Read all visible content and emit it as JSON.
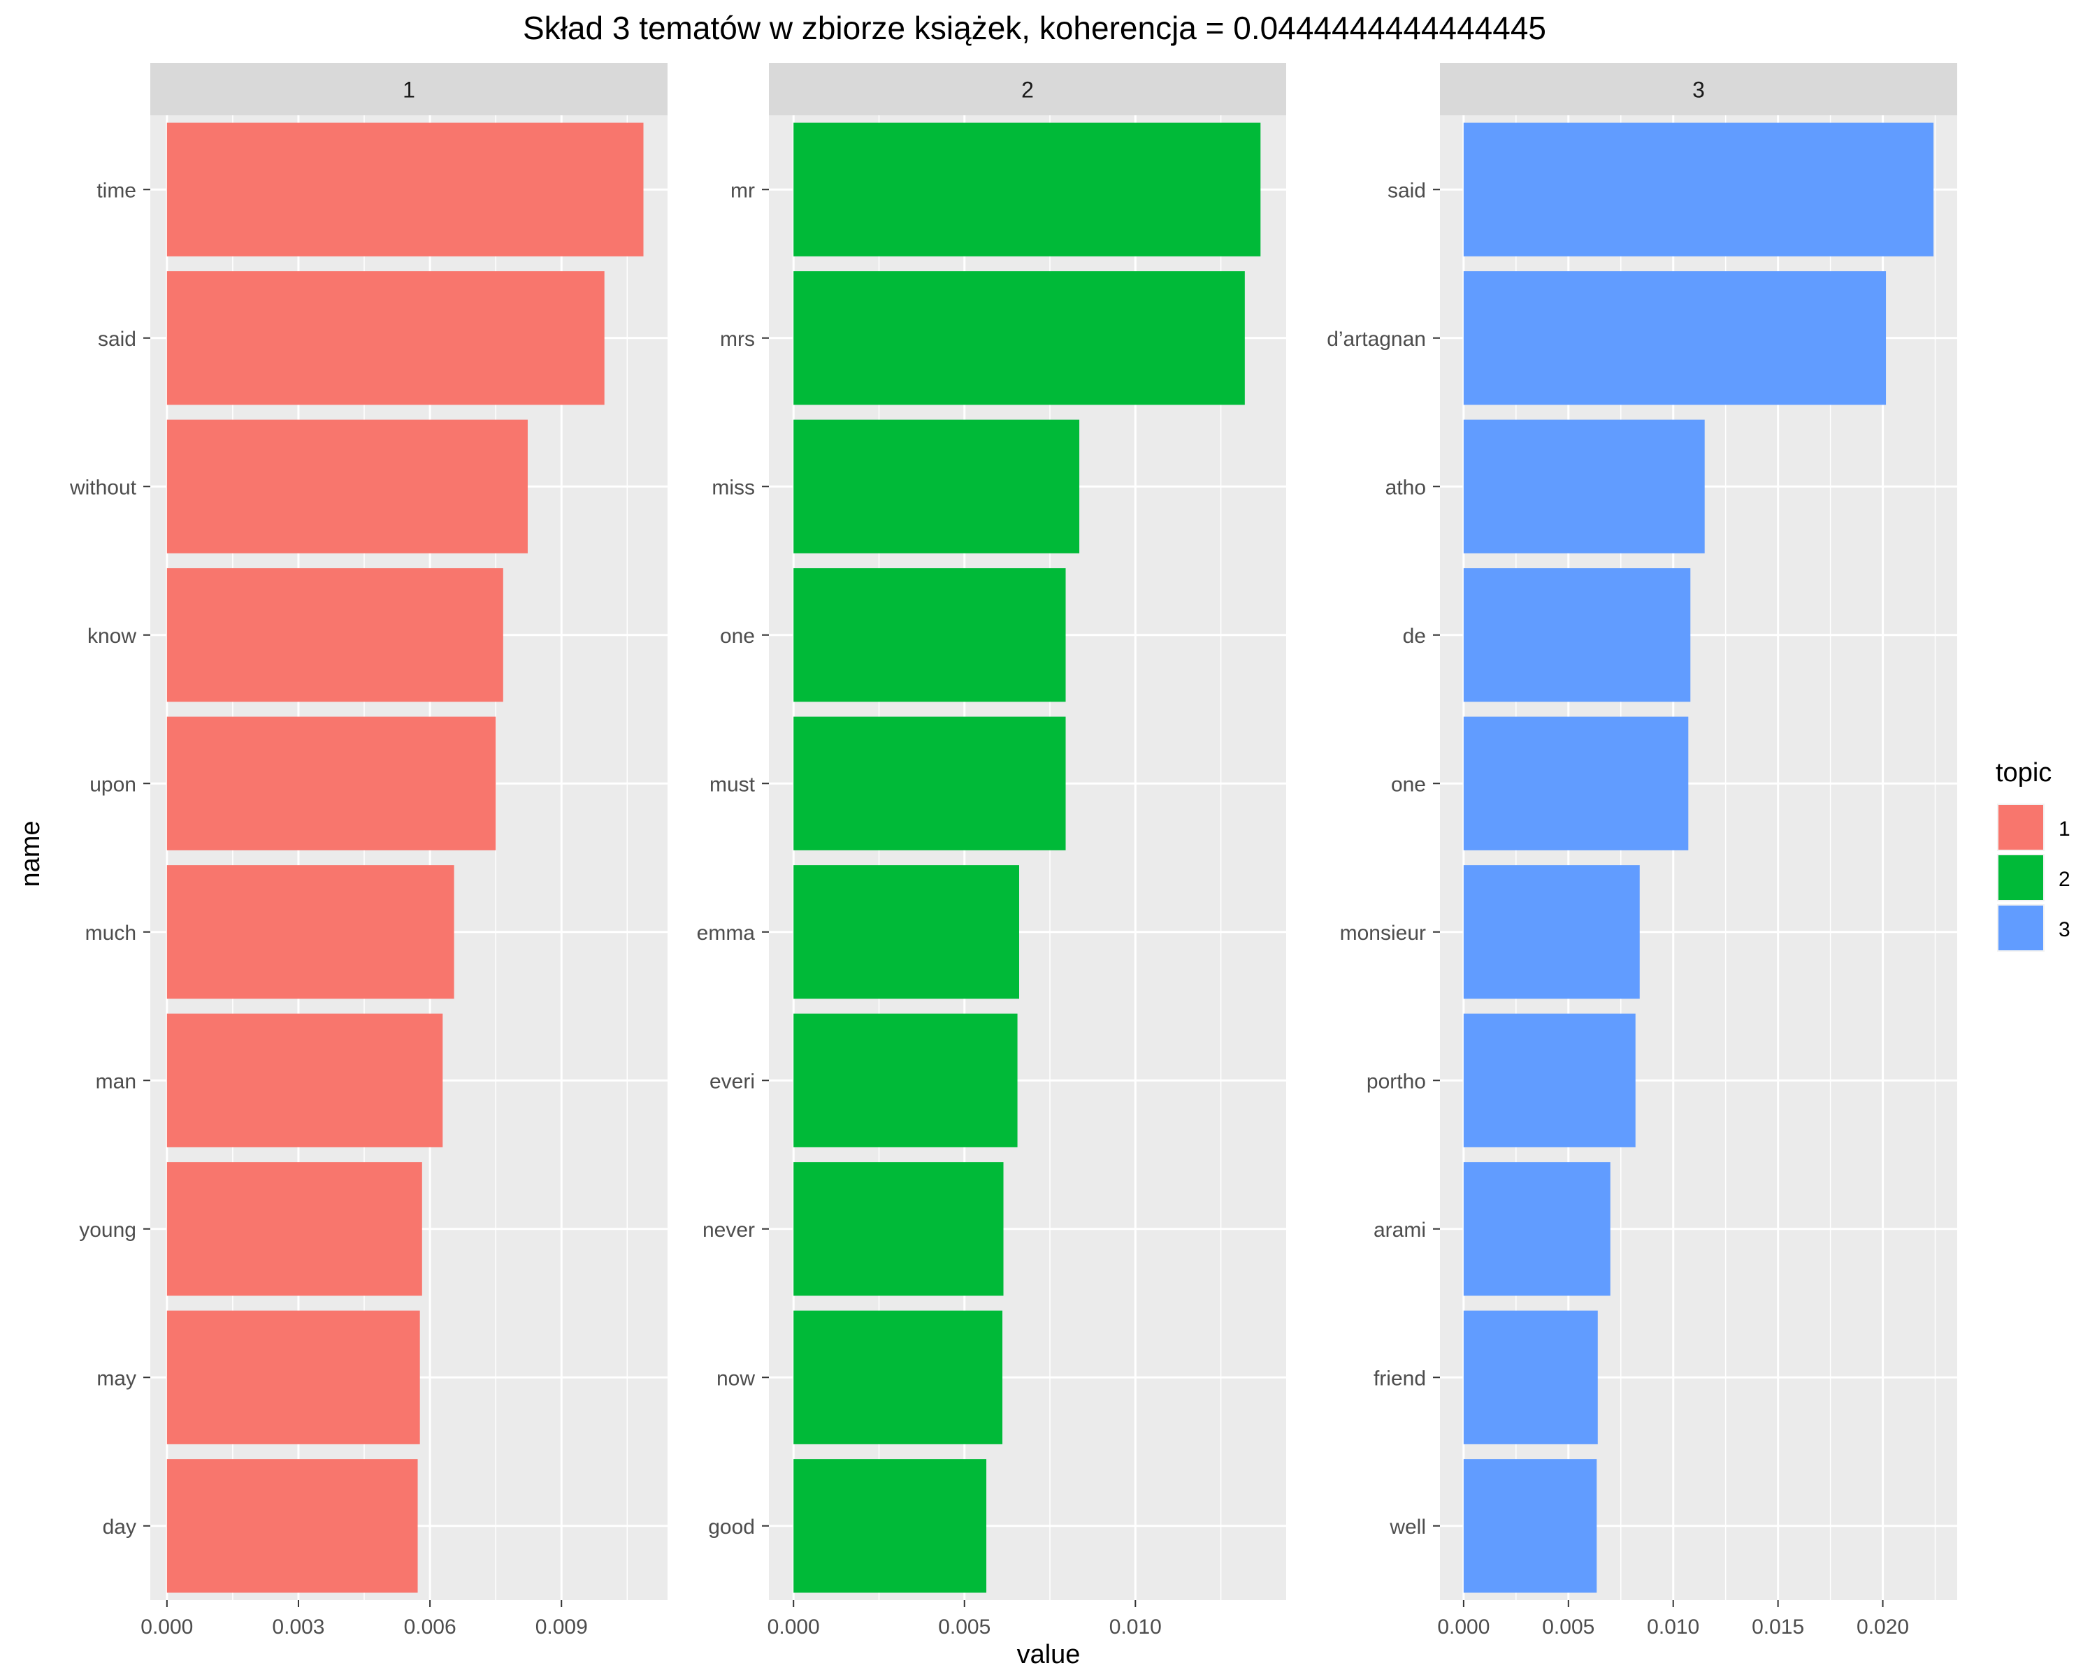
{
  "chart_data": {
    "type": "bar",
    "orientation": "horizontal",
    "title": "Skład 3 tematów w zbiorze książek, koherencja = 0.0444444444444445",
    "xlabel": "value",
    "ylabel": "name",
    "legend": {
      "title": "topic",
      "position": "right",
      "entries": [
        {
          "label": "1",
          "color": "#F8766D"
        },
        {
          "label": "2",
          "color": "#00BA38"
        },
        {
          "label": "3",
          "color": "#619CFF"
        }
      ]
    },
    "facets": [
      {
        "strip": "1",
        "color": "#F8766D",
        "xlim": [
          -0.00038,
          0.01142
        ],
        "ticks": [
          0,
          0.003,
          0.006,
          0.009
        ],
        "tick_labels": [
          "0.000",
          "0.003",
          "0.006",
          "0.009"
        ],
        "categories": [
          "time",
          "said",
          "without",
          "know",
          "upon",
          "much",
          "man",
          "young",
          "may",
          "day"
        ],
        "values": [
          0.01087,
          0.00998,
          0.00823,
          0.00767,
          0.0075,
          0.00655,
          0.00629,
          0.00582,
          0.00577,
          0.00572
        ]
      },
      {
        "strip": "2",
        "color": "#00BA38",
        "xlim": [
          -0.00072,
          0.01441
        ],
        "ticks": [
          0,
          0.005,
          0.01
        ],
        "tick_labels": [
          "0.000",
          "0.005",
          "0.010"
        ],
        "categories": [
          "mr",
          "mrs",
          "miss",
          "one",
          "must",
          "emma",
          "everi",
          "never",
          "now",
          "good"
        ],
        "values": [
          0.01366,
          0.0132,
          0.00836,
          0.00796,
          0.00796,
          0.0066,
          0.00655,
          0.00614,
          0.00611,
          0.00564
        ]
      },
      {
        "strip": "3",
        "color": "#619CFF",
        "xlim": [
          -0.00113,
          0.02355
        ],
        "ticks": [
          0,
          0.005,
          0.01,
          0.015,
          0.02
        ],
        "tick_labels": [
          "0.000",
          "0.005",
          "0.010",
          "0.015",
          "0.020"
        ],
        "categories": [
          "said",
          "d’artagnan",
          "atho",
          "de",
          "one",
          "monsieur",
          "portho",
          "arami",
          "friend",
          "well"
        ],
        "values": [
          0.02242,
          0.02015,
          0.0115,
          0.01082,
          0.01072,
          0.0084,
          0.0082,
          0.007,
          0.0064,
          0.00635
        ]
      }
    ]
  }
}
